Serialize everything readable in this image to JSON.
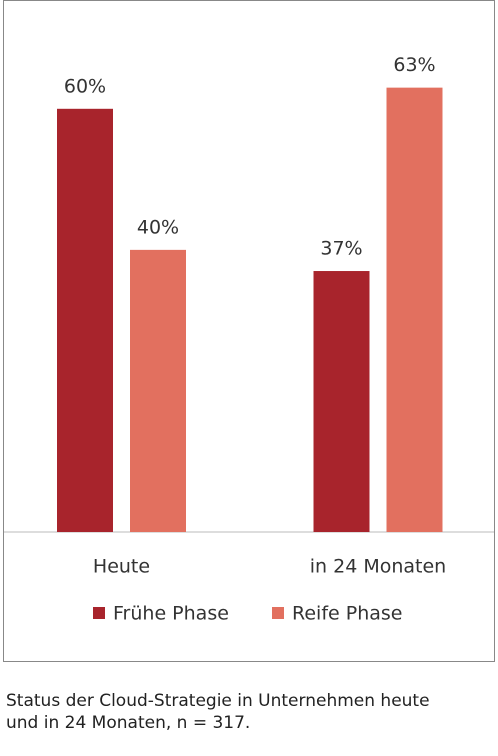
{
  "chart_data": {
    "type": "bar",
    "categories": [
      "Heute",
      "in 24 Monaten"
    ],
    "series": [
      {
        "name": "Frühe Phase",
        "color": "#a8242c",
        "values": [
          60,
          37
        ],
        "value_labels": [
          "60%",
          "37%"
        ]
      },
      {
        "name": "Reife Phase",
        "color": "#e2705f",
        "values": [
          40,
          63
        ],
        "value_labels": [
          "40%",
          "63%"
        ]
      }
    ],
    "ylim": [
      0,
      75
    ],
    "legend": "bottom"
  },
  "caption_lines": [
    "Status der Cloud-Strategie in Unternehmen heute",
    "und in 24 Monaten, n = 317."
  ]
}
